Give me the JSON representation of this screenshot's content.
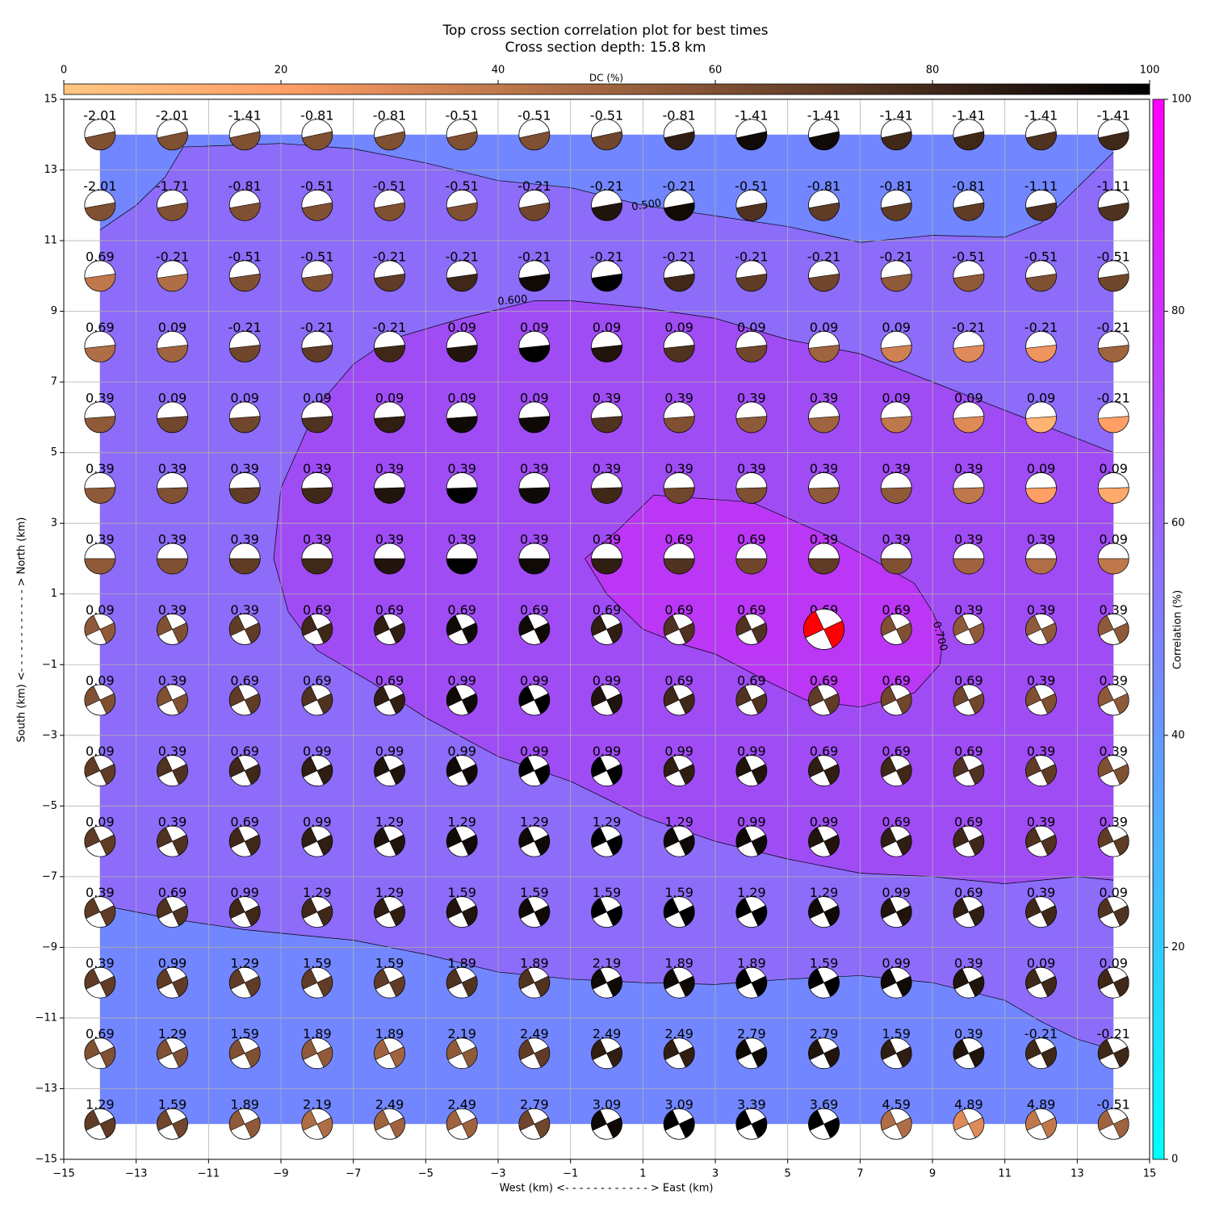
{
  "chart_data": {
    "type": "beachball-grid",
    "title": "Top cross section correlation plot for best times",
    "subtitle": "Cross section depth: 15.8 km",
    "x_label": "West (km) <- - - - - - - - - - - - > East (km)",
    "y_label": "South (km) <- - - - - - - - - - - - > North (km)",
    "xlim": [
      -15,
      15
    ],
    "ylim": [
      -15,
      15
    ],
    "xticks": [
      {
        "value": -15,
        "label": "−15"
      },
      {
        "value": -13,
        "label": "−13"
      },
      {
        "value": -11,
        "label": "−11"
      },
      {
        "value": -9,
        "label": "−9"
      },
      {
        "value": -7,
        "label": "−7"
      },
      {
        "value": -5,
        "label": "−5"
      },
      {
        "value": -3,
        "label": "−3"
      },
      {
        "value": -1,
        "label": "−1"
      },
      1,
      3,
      5,
      7,
      9,
      11,
      13,
      15
    ],
    "yticks": [
      {
        "value": -15,
        "label": "−15"
      },
      {
        "value": -13,
        "label": "−13"
      },
      {
        "value": -11,
        "label": "−11"
      },
      {
        "value": -9,
        "label": "−9"
      },
      {
        "value": -7,
        "label": "−7"
      },
      {
        "value": -5,
        "label": "−5"
      },
      {
        "value": -3,
        "label": "−3"
      },
      {
        "value": -1,
        "label": "−1"
      },
      1,
      3,
      5,
      7,
      9,
      11,
      13,
      15
    ],
    "grid": true,
    "x": [
      -14,
      -12,
      -10,
      -8,
      -6,
      -4,
      -2,
      0,
      2,
      4,
      6,
      8,
      10,
      12,
      14
    ],
    "y": [
      14,
      12,
      10,
      8,
      6,
      4,
      2,
      0,
      -2,
      -4,
      -6,
      -8,
      -10,
      -12,
      -14
    ],
    "labels": [
      [
        -2.01,
        -2.01,
        -1.41,
        -0.81,
        -0.81,
        -0.51,
        -0.51,
        -0.51,
        -0.81,
        -1.41,
        -1.41,
        -1.41,
        -1.41,
        -1.41,
        -1.41
      ],
      [
        -2.01,
        -1.71,
        -0.81,
        -0.51,
        -0.51,
        -0.51,
        -0.21,
        -0.21,
        -0.21,
        -0.51,
        -0.81,
        -0.81,
        -0.81,
        -1.11,
        -1.11
      ],
      [
        0.69,
        -0.21,
        -0.51,
        -0.51,
        -0.21,
        -0.21,
        -0.21,
        -0.21,
        -0.21,
        -0.21,
        -0.21,
        -0.21,
        -0.51,
        -0.51,
        -0.51
      ],
      [
        0.69,
        0.09,
        -0.21,
        -0.21,
        -0.21,
        0.09,
        0.09,
        0.09,
        0.09,
        0.09,
        0.09,
        0.09,
        -0.21,
        -0.21,
        -0.21
      ],
      [
        0.39,
        0.09,
        0.09,
        0.09,
        0.09,
        0.09,
        0.09,
        0.39,
        0.39,
        0.39,
        0.39,
        0.09,
        0.09,
        0.09,
        -0.21
      ],
      [
        0.39,
        0.39,
        0.39,
        0.39,
        0.39,
        0.39,
        0.39,
        0.39,
        0.39,
        0.39,
        0.39,
        0.39,
        0.39,
        0.09,
        0.09
      ],
      [
        0.39,
        0.39,
        0.39,
        0.39,
        0.39,
        0.39,
        0.39,
        0.39,
        0.69,
        0.69,
        0.39,
        0.39,
        0.39,
        0.39,
        0.09
      ],
      [
        0.09,
        0.39,
        0.39,
        0.69,
        0.69,
        0.69,
        0.69,
        0.69,
        0.69,
        0.69,
        0.69,
        0.69,
        0.39,
        0.39,
        0.39
      ],
      [
        0.09,
        0.39,
        0.69,
        0.69,
        0.69,
        0.99,
        0.99,
        0.99,
        0.69,
        0.69,
        0.69,
        0.69,
        0.69,
        0.39,
        0.39
      ],
      [
        0.09,
        0.39,
        0.69,
        0.99,
        0.99,
        0.99,
        0.99,
        0.99,
        0.99,
        0.99,
        0.69,
        0.69,
        0.69,
        0.39,
        0.39
      ],
      [
        0.09,
        0.39,
        0.69,
        0.99,
        1.29,
        1.29,
        1.29,
        1.29,
        1.29,
        0.99,
        0.99,
        0.69,
        0.69,
        0.39,
        0.39
      ],
      [
        0.39,
        0.69,
        0.99,
        1.29,
        1.29,
        1.59,
        1.59,
        1.59,
        1.59,
        1.29,
        1.29,
        0.99,
        0.69,
        0.39,
        0.09
      ],
      [
        0.39,
        0.99,
        1.29,
        1.59,
        1.59,
        1.89,
        1.89,
        2.19,
        1.89,
        1.89,
        1.59,
        0.99,
        0.39,
        0.09,
        0.09
      ],
      [
        0.69,
        1.29,
        1.59,
        1.89,
        1.89,
        2.19,
        2.49,
        2.49,
        2.49,
        2.79,
        2.79,
        1.59,
        0.39,
        -0.21,
        -0.21
      ],
      [
        1.29,
        1.59,
        1.89,
        2.19,
        2.49,
        2.49,
        2.79,
        3.09,
        3.09,
        3.39,
        3.69,
        4.59,
        4.89,
        4.89,
        -0.51
      ]
    ],
    "dc": [
      [
        60,
        60,
        60,
        60,
        60,
        60,
        60,
        65,
        85,
        95,
        95,
        80,
        80,
        75,
        80
      ],
      [
        60,
        60,
        60,
        60,
        60,
        60,
        65,
        90,
        95,
        75,
        70,
        70,
        70,
        75,
        75
      ],
      [
        40,
        45,
        60,
        60,
        70,
        80,
        95,
        100,
        80,
        70,
        65,
        55,
        55,
        60,
        65
      ],
      [
        45,
        50,
        65,
        70,
        80,
        90,
        100,
        90,
        75,
        65,
        50,
        35,
        30,
        25,
        50
      ],
      [
        55,
        65,
        65,
        75,
        85,
        95,
        95,
        75,
        60,
        55,
        50,
        40,
        30,
        10,
        20
      ],
      [
        55,
        60,
        70,
        80,
        90,
        100,
        95,
        80,
        65,
        60,
        55,
        55,
        40,
        20,
        15
      ],
      [
        55,
        60,
        70,
        80,
        90,
        100,
        95,
        85,
        75,
        65,
        70,
        60,
        50,
        45,
        40
      ],
      [
        55,
        60,
        70,
        80,
        85,
        95,
        95,
        85,
        75,
        75,
        75,
        60,
        55,
        55,
        55
      ],
      [
        60,
        60,
        70,
        75,
        85,
        95,
        100,
        90,
        80,
        75,
        70,
        65,
        65,
        60,
        55
      ],
      [
        70,
        75,
        80,
        85,
        90,
        95,
        100,
        100,
        85,
        90,
        85,
        80,
        75,
        70,
        60
      ],
      [
        70,
        75,
        80,
        85,
        90,
        95,
        95,
        100,
        95,
        95,
        90,
        85,
        80,
        75,
        70
      ],
      [
        70,
        75,
        80,
        80,
        85,
        90,
        95,
        100,
        100,
        100,
        95,
        90,
        85,
        80,
        75
      ],
      [
        70,
        70,
        70,
        70,
        70,
        75,
        75,
        95,
        95,
        100,
        100,
        95,
        90,
        80,
        80
      ],
      [
        60,
        60,
        60,
        55,
        50,
        55,
        70,
        85,
        85,
        95,
        90,
        85,
        90,
        80,
        80
      ],
      [
        70,
        65,
        55,
        45,
        50,
        50,
        65,
        95,
        100,
        100,
        100,
        45,
        30,
        40,
        50
      ]
    ],
    "best_x": 6,
    "best_y": 0,
    "best_color": "#ff0000",
    "fills": [
      {
        "color": "#7286ff",
        "x": [
          -14,
          14,
          14,
          -14
        ],
        "y": [
          -14,
          -14,
          14,
          14
        ]
      },
      {
        "color": "#8c6cf8",
        "label": "0.500",
        "x": [
          -14,
          -13,
          -12.2,
          -11.7,
          -9,
          -7,
          -5,
          -3,
          -1,
          1,
          3,
          5,
          7,
          9,
          11,
          12,
          13,
          14,
          14,
          13,
          12,
          11,
          9,
          7,
          5,
          3,
          1,
          -1,
          -3,
          -5,
          -7,
          -10,
          -12,
          -14
        ],
        "y": [
          11.3,
          12,
          12.8,
          13.65,
          13.75,
          13.6,
          13.2,
          12.7,
          12.5,
          12,
          11.7,
          11.4,
          10.95,
          11.15,
          11.1,
          11.5,
          12.5,
          13.5,
          -11.9,
          -11.6,
          -11.1,
          -10.5,
          -10,
          -9.8,
          -9.9,
          -10.05,
          -10,
          -9.9,
          -9.7,
          -9.2,
          -8.8,
          -8.5,
          -8.2,
          -7.8
        ]
      },
      {
        "color": "#a04cf5",
        "label": "0.600",
        "x": [
          14,
          11,
          9,
          7,
          5,
          3,
          1,
          -1,
          -2,
          -4,
          -6,
          -7,
          -8,
          -9,
          -9.2,
          -8.8,
          -8,
          -6.5,
          -5,
          -3,
          -1,
          1,
          3,
          5,
          7,
          9,
          11,
          13,
          14
        ],
        "y": [
          5,
          6.2,
          7,
          7.8,
          8.2,
          8.8,
          9.1,
          9.3,
          9.3,
          8.8,
          8.2,
          7.5,
          6.3,
          4,
          2,
          0.5,
          -0.6,
          -1.5,
          -2.5,
          -3.6,
          -4.3,
          -5.3,
          -6,
          -6.5,
          -6.9,
          -7,
          -7.2,
          -7,
          -7.1
        ]
      },
      {
        "color": "#bb37f5",
        "label": "0.700",
        "x": [
          -0.6,
          0.3,
          1.3,
          4,
          6,
          7.3,
          8.5,
          9,
          9.3,
          9.2,
          8.5,
          7,
          5.5,
          4.5,
          3,
          2,
          1,
          0,
          -0.3
        ],
        "y": [
          2,
          2.8,
          3.8,
          3.6,
          2.7,
          2,
          1.3,
          0.5,
          -0.2,
          -1,
          -1.8,
          -2.2,
          -2,
          -1.5,
          -0.7,
          -0.4,
          0,
          1,
          1.5
        ]
      }
    ],
    "dc_colorbar": {
      "label": "DC (%)",
      "lim": [
        0,
        100
      ],
      "ticks": [
        0,
        20,
        40,
        60,
        80,
        100
      ]
    },
    "corr_colorbar": {
      "label": "Correlation (%)",
      "lim": [
        0,
        100
      ],
      "ticks": [
        0,
        20,
        40,
        60,
        80,
        100
      ]
    }
  }
}
